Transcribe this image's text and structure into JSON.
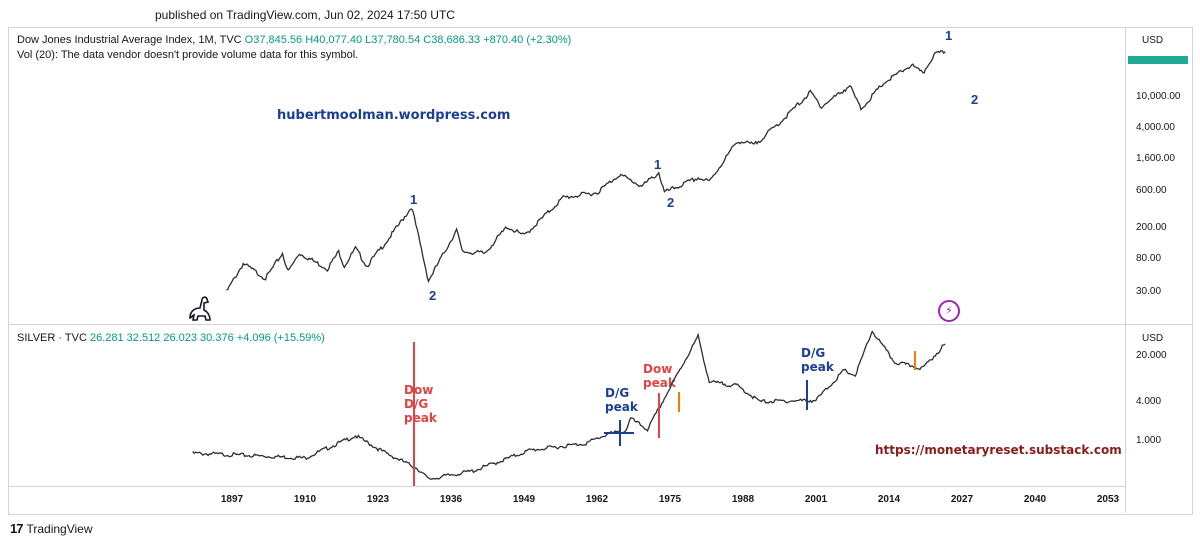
{
  "header": {
    "published": "published on TradingView.com, Jun 02, 2024 17:50 UTC"
  },
  "top_pane": {
    "legend_title": "Dow Jones Industrial Average Index, 1M, TVC",
    "legend_values": "O37,845.56  H40,077.40  L37,780.54  C38,686.33  +870.40 (+2.30%)",
    "volume_note": "Vol (20): The data vendor doesn't provide volume data for this symbol.",
    "currency": "USD",
    "watermark_url": "hubertmoolman.wordpress.com"
  },
  "bottom_pane": {
    "legend_title": "SILVER · TVC",
    "legend_values": "26.281  32.512  26.023  30.376  +4.096 (+15.59%)",
    "currency": "USD",
    "watermark_url": "https://monetaryreset.substack.com"
  },
  "annotations": {
    "dow_dg_peak": [
      "Dow",
      "D/G",
      "peak"
    ],
    "dg_peak_1965": [
      "D/G",
      "peak"
    ],
    "dow_peak_1972": [
      "Dow",
      "peak"
    ],
    "dg_peak_2000": [
      "D/G",
      "peak"
    ],
    "waves": {
      "w1_1929": "1",
      "w2_1932": "2",
      "w1_1966": "1",
      "w2_1966": "2",
      "w1_2024": "1",
      "w2_future": "2"
    }
  },
  "footer": {
    "brand": "TradingView",
    "logo": "17"
  },
  "colors": {
    "up": "#089981",
    "down": "#f23645",
    "accent_blue": "#1c3f94",
    "accent_red": "#e04343",
    "grid": "#cfd3da"
  },
  "chart_data": [
    {
      "type": "line",
      "title": "Dow Jones Industrial Average Index, 1M, TVC",
      "scale": "log",
      "yticks": [
        "30.00",
        "80.00",
        "200.00",
        "600.00",
        "1,600.00",
        "4,000.00",
        "10,000.00"
      ],
      "xticks": [
        "1897",
        "1910",
        "1923",
        "1936",
        "1949",
        "1962",
        "1975",
        "1988",
        "2001",
        "2014",
        "2027",
        "2040",
        "2053"
      ],
      "x": [
        1896,
        1899,
        1903,
        1906,
        1907,
        1909,
        1914,
        1916,
        1917,
        1919,
        1921,
        1925,
        1929,
        1932,
        1937,
        1938,
        1942,
        1946,
        1949,
        1956,
        1962,
        1966,
        1970,
        1973,
        1974,
        1980,
        1982,
        1987,
        1990,
        1995,
        2000,
        2002,
        2007,
        2009,
        2013,
        2018,
        2020,
        2022,
        2024
      ],
      "y": [
        30,
        70,
        45,
        95,
        55,
        95,
        60,
        100,
        65,
        110,
        65,
        150,
        380,
        42,
        190,
        100,
        95,
        210,
        160,
        500,
        580,
        995,
        700,
        1050,
        580,
        900,
        800,
        2700,
        2400,
        5000,
        11500,
        7500,
        14000,
        7000,
        15000,
        26000,
        20000,
        35000,
        38686
      ]
    },
    {
      "type": "line",
      "title": "SILVER · TVC",
      "scale": "log",
      "yticks": [
        "1.000",
        "4.000",
        "20.000"
      ],
      "x": [
        1890,
        1900,
        1910,
        1919,
        1924,
        1930,
        1932,
        1940,
        1945,
        1950,
        1960,
        1964,
        1967,
        1968,
        1971,
        1974,
        1980,
        1982,
        1987,
        1991,
        2001,
        2006,
        2008,
        2011,
        2015,
        2020,
        2024
      ],
      "y": [
        0.65,
        0.6,
        0.55,
        1.2,
        0.68,
        0.38,
        0.26,
        0.35,
        0.5,
        0.72,
        0.92,
        1.29,
        1.4,
        2.2,
        1.5,
        4.5,
        40,
        8,
        7,
        4,
        4.2,
        12,
        10,
        48,
        16,
        13,
        30.376
      ]
    }
  ]
}
